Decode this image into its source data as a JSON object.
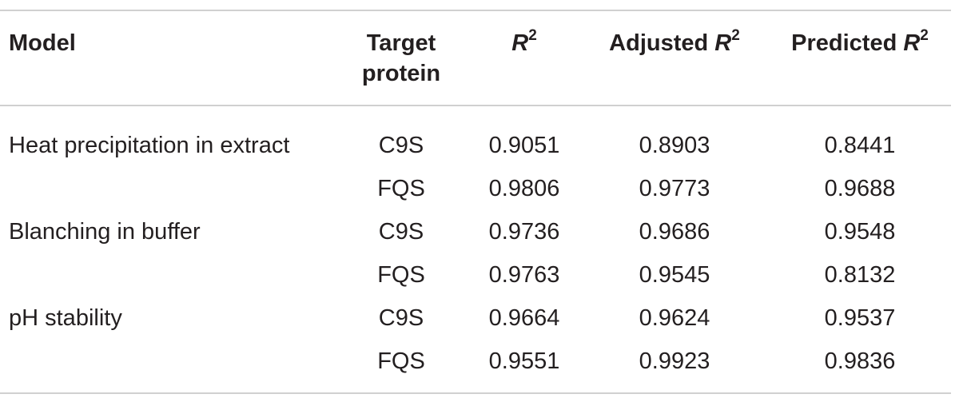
{
  "table": {
    "headers": {
      "model": "Model",
      "target_line1": "Target",
      "target_line2": "protein",
      "r2_var": "R",
      "r2_sup": "2",
      "adj_prefix": "Adjusted ",
      "adj_var": "R",
      "adj_sup": "2",
      "pred_prefix": "Predicted ",
      "pred_var": "R",
      "pred_sup": "2"
    },
    "rows": [
      {
        "model": "Heat precipitation in extract",
        "target": "C9S",
        "r2": "0.9051",
        "adjusted": "0.8903",
        "predicted": "0.8441"
      },
      {
        "model": "",
        "target": "FQS",
        "r2": "0.9806",
        "adjusted": "0.9773",
        "predicted": "0.9688"
      },
      {
        "model": "Blanching in buffer",
        "target": "C9S",
        "r2": "0.9736",
        "adjusted": "0.9686",
        "predicted": "0.9548"
      },
      {
        "model": "",
        "target": "FQS",
        "r2": "0.9763",
        "adjusted": "0.9545",
        "predicted": "0.8132"
      },
      {
        "model": "pH stability",
        "target": "C9S",
        "r2": "0.9664",
        "adjusted": "0.9624",
        "predicted": "0.9537"
      },
      {
        "model": "",
        "target": "FQS",
        "r2": "0.9551",
        "adjusted": "0.9923",
        "predicted": "0.9836"
      }
    ]
  }
}
